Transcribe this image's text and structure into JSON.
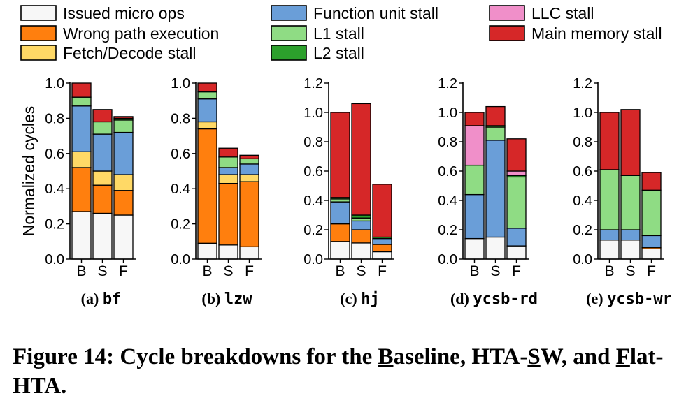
{
  "legend": [
    {
      "key": "issued",
      "label": "Issued micro ops",
      "color": "#f7f7f7"
    },
    {
      "key": "wrong",
      "label": "Wrong path execution",
      "color": "#ff7f0e"
    },
    {
      "key": "fetch",
      "label": "Fetch/Decode stall",
      "color": "#ffd966"
    },
    {
      "key": "func",
      "label": "Function unit stall",
      "color": "#6a9ed8"
    },
    {
      "key": "l1",
      "label": "L1 stall",
      "color": "#8fdc84"
    },
    {
      "key": "l2",
      "label": "L2 stall",
      "color": "#2ca02c"
    },
    {
      "key": "llc",
      "label": "LLC stall",
      "color": "#f08fc9"
    },
    {
      "key": "mem",
      "label": "Main memory stall",
      "color": "#d62728"
    }
  ],
  "ylabel": "Normalized cycles",
  "caption": {
    "prefix": "Figure 14: Cycle breakdowns for the ",
    "b_letter": "B",
    "b_rest": "aseline, HTA-",
    "s_letter": "S",
    "s_rest": "W, and ",
    "f_letter": "F",
    "f_rest": "lat-HTA."
  },
  "chart_data": [
    {
      "type": "bar",
      "stacked": true,
      "subtitle_tag": "(a)",
      "subtitle_name": "bf",
      "categories": [
        "B",
        "S",
        "F"
      ],
      "ylim": [
        0,
        1.0
      ],
      "yticks": [
        "0.0",
        "0.2",
        "0.4",
        "0.6",
        "0.8",
        "1.0"
      ],
      "segments": {
        "issued": [
          0.27,
          0.26,
          0.25
        ],
        "wrong": [
          0.25,
          0.16,
          0.14
        ],
        "fetch": [
          0.09,
          0.08,
          0.09
        ],
        "func": [
          0.26,
          0.21,
          0.24
        ],
        "l1": [
          0.05,
          0.07,
          0.07
        ],
        "l2": [
          0.0,
          0.0,
          0.01
        ],
        "llc": [
          0.0,
          0.0,
          0.0
        ],
        "mem": [
          0.08,
          0.07,
          0.01
        ]
      }
    },
    {
      "type": "bar",
      "stacked": true,
      "subtitle_tag": "(b)",
      "subtitle_name": "lzw",
      "categories": [
        "B",
        "S",
        "F"
      ],
      "ylim": [
        0,
        1.0
      ],
      "yticks": [
        "0.0",
        "0.2",
        "0.4",
        "0.6",
        "0.8",
        "1.0"
      ],
      "segments": {
        "issued": [
          0.09,
          0.08,
          0.07
        ],
        "wrong": [
          0.65,
          0.35,
          0.37
        ],
        "fetch": [
          0.04,
          0.05,
          0.04
        ],
        "func": [
          0.13,
          0.04,
          0.06
        ],
        "l1": [
          0.04,
          0.06,
          0.03
        ],
        "l2": [
          0.0,
          0.0,
          0.0
        ],
        "llc": [
          0.0,
          0.0,
          0.0
        ],
        "mem": [
          0.05,
          0.05,
          0.02
        ]
      }
    },
    {
      "type": "bar",
      "stacked": true,
      "subtitle_tag": "(c)",
      "subtitle_name": "hj",
      "categories": [
        "B",
        "S",
        "F"
      ],
      "ylim": [
        0,
        1.2
      ],
      "yticks": [
        "0.0",
        "0.2",
        "0.4",
        "0.6",
        "0.8",
        "1.0",
        "1.2"
      ],
      "segments": {
        "issued": [
          0.12,
          0.11,
          0.05
        ],
        "wrong": [
          0.12,
          0.09,
          0.05
        ],
        "fetch": [
          0.0,
          0.0,
          0.0
        ],
        "func": [
          0.15,
          0.06,
          0.04
        ],
        "l1": [
          0.02,
          0.02,
          0.0
        ],
        "l2": [
          0.01,
          0.02,
          0.01
        ],
        "llc": [
          0.0,
          0.0,
          0.0
        ],
        "mem": [
          0.58,
          0.76,
          0.36
        ]
      }
    },
    {
      "type": "bar",
      "stacked": true,
      "subtitle_tag": "(d)",
      "subtitle_name": "ycsb-rd",
      "categories": [
        "B",
        "S",
        "F"
      ],
      "ylim": [
        0,
        1.2
      ],
      "yticks": [
        "0.0",
        "0.2",
        "0.4",
        "0.6",
        "0.8",
        "1.0",
        "1.2"
      ],
      "segments": {
        "issued": [
          0.14,
          0.15,
          0.09
        ],
        "wrong": [
          0.0,
          0.0,
          0.0
        ],
        "fetch": [
          0.0,
          0.0,
          0.0
        ],
        "func": [
          0.3,
          0.66,
          0.12
        ],
        "l1": [
          0.2,
          0.09,
          0.35
        ],
        "l2": [
          0.0,
          0.01,
          0.01
        ],
        "llc": [
          0.27,
          0.0,
          0.03
        ],
        "mem": [
          0.09,
          0.13,
          0.22
        ]
      }
    },
    {
      "type": "bar",
      "stacked": true,
      "subtitle_tag": "(e)",
      "subtitle_name": "ycsb-wr",
      "categories": [
        "B",
        "S",
        "F"
      ],
      "ylim": [
        0,
        1.2
      ],
      "yticks": [
        "0.0",
        "0.2",
        "0.4",
        "0.6",
        "0.8",
        "1.0",
        "1.2"
      ],
      "segments": {
        "issued": [
          0.13,
          0.13,
          0.07
        ],
        "wrong": [
          0.0,
          0.0,
          0.01
        ],
        "fetch": [
          0.0,
          0.0,
          0.0
        ],
        "func": [
          0.07,
          0.07,
          0.08
        ],
        "l1": [
          0.41,
          0.37,
          0.31
        ],
        "l2": [
          0.0,
          0.0,
          0.0
        ],
        "llc": [
          0.0,
          0.0,
          0.0
        ],
        "mem": [
          0.39,
          0.45,
          0.12
        ]
      }
    }
  ]
}
